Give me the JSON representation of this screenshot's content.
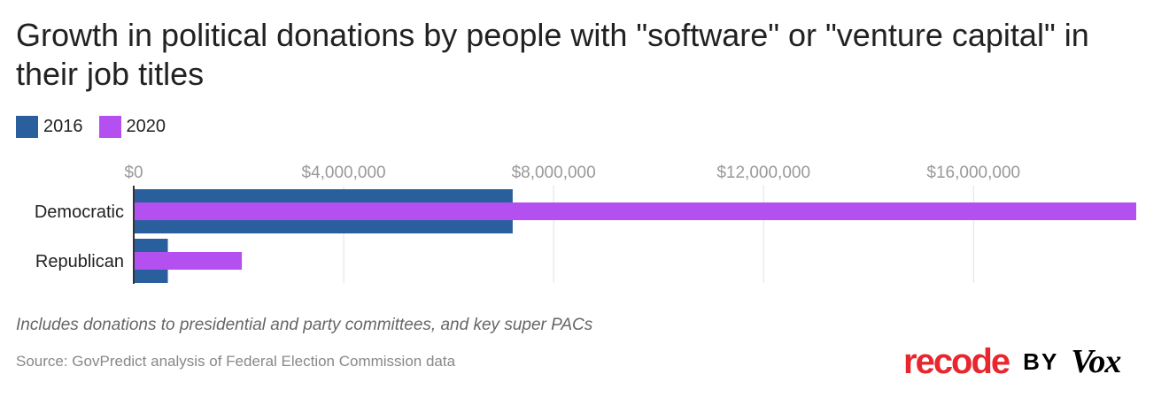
{
  "chart_data": {
    "type": "bar",
    "orientation": "horizontal",
    "title": "Growth in political donations by people with \"software\" or \"venture capital\" in their job titles",
    "categories": [
      "Democratic",
      "Republican"
    ],
    "series": [
      {
        "name": "2016",
        "color": "#2a5f9e",
        "values": [
          7220000,
          650000
        ]
      },
      {
        "name": "2020",
        "color": "#b550f0",
        "values": [
          19100000,
          2060000
        ]
      }
    ],
    "xlim": [
      0,
      19100000
    ],
    "ticks": [
      0,
      4000000,
      8000000,
      12000000,
      16000000
    ],
    "tick_labels": [
      "$0",
      "$4,000,000",
      "$8,000,000",
      "$12,000,000",
      "$16,000,000"
    ],
    "grid": true,
    "legend_position": "top-left",
    "xlabel": "",
    "ylabel": ""
  },
  "footer": {
    "note": "Includes donations to presidential and party committees, and key super PACs",
    "source": "Source: GovPredict analysis of Federal Election Commission data"
  },
  "logo": {
    "recode": "recode",
    "by": "BY",
    "vox": "Vox",
    "recode_color": "#e8262d"
  }
}
